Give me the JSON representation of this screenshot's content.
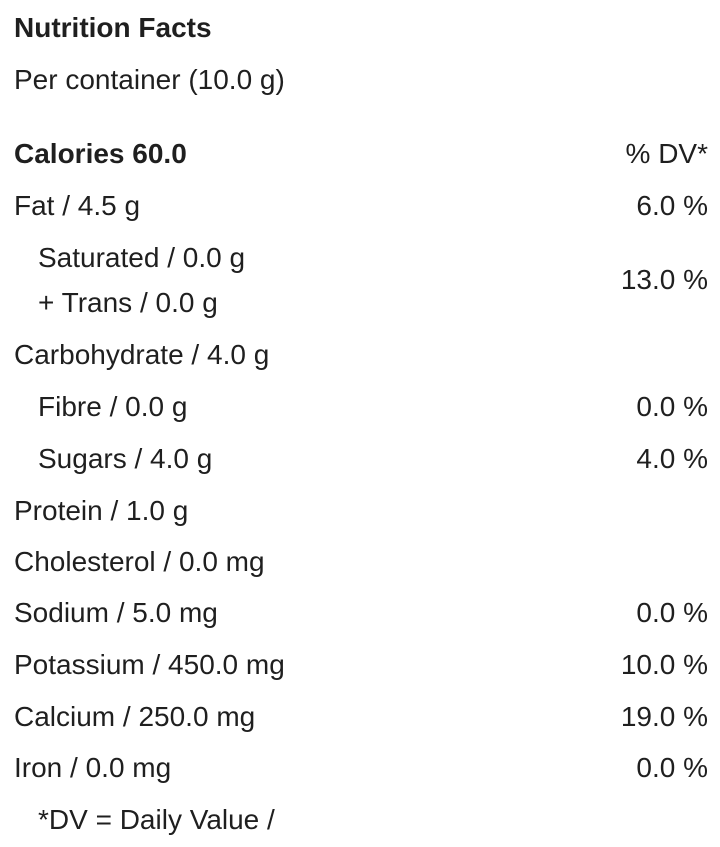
{
  "title": "Nutrition Facts",
  "serving": "Per container (10.0 g)",
  "calories": "Calories 60.0",
  "dv_header": "% DV*",
  "rows": [
    {
      "label": "Fat / 4.5 g",
      "dv": "6.0 %"
    },
    {
      "lines": [
        "Saturated / 0.0 g",
        "+ Trans / 0.0 g"
      ],
      "dv": "13.0 %"
    },
    {
      "label": "Carbohydrate / 4.0 g"
    },
    {
      "label": "Fibre / 0.0 g",
      "dv": "0.0 %"
    },
    {
      "label": "Sugars / 4.0 g",
      "dv": "4.0 %"
    },
    {
      "label": "Protein / 1.0 g"
    },
    {
      "label": "Cholesterol / 0.0 mg"
    },
    {
      "label": "Sodium / 5.0 mg",
      "dv": "0.0 %"
    },
    {
      "label": "Potassium / 450.0 mg",
      "dv": "10.0 %"
    },
    {
      "label": "Calcium / 250.0 mg",
      "dv": "19.0 %"
    },
    {
      "label": "Iron / 0.0 mg",
      "dv": "0.0 %"
    }
  ],
  "footnote": "*DV = Daily Value /"
}
